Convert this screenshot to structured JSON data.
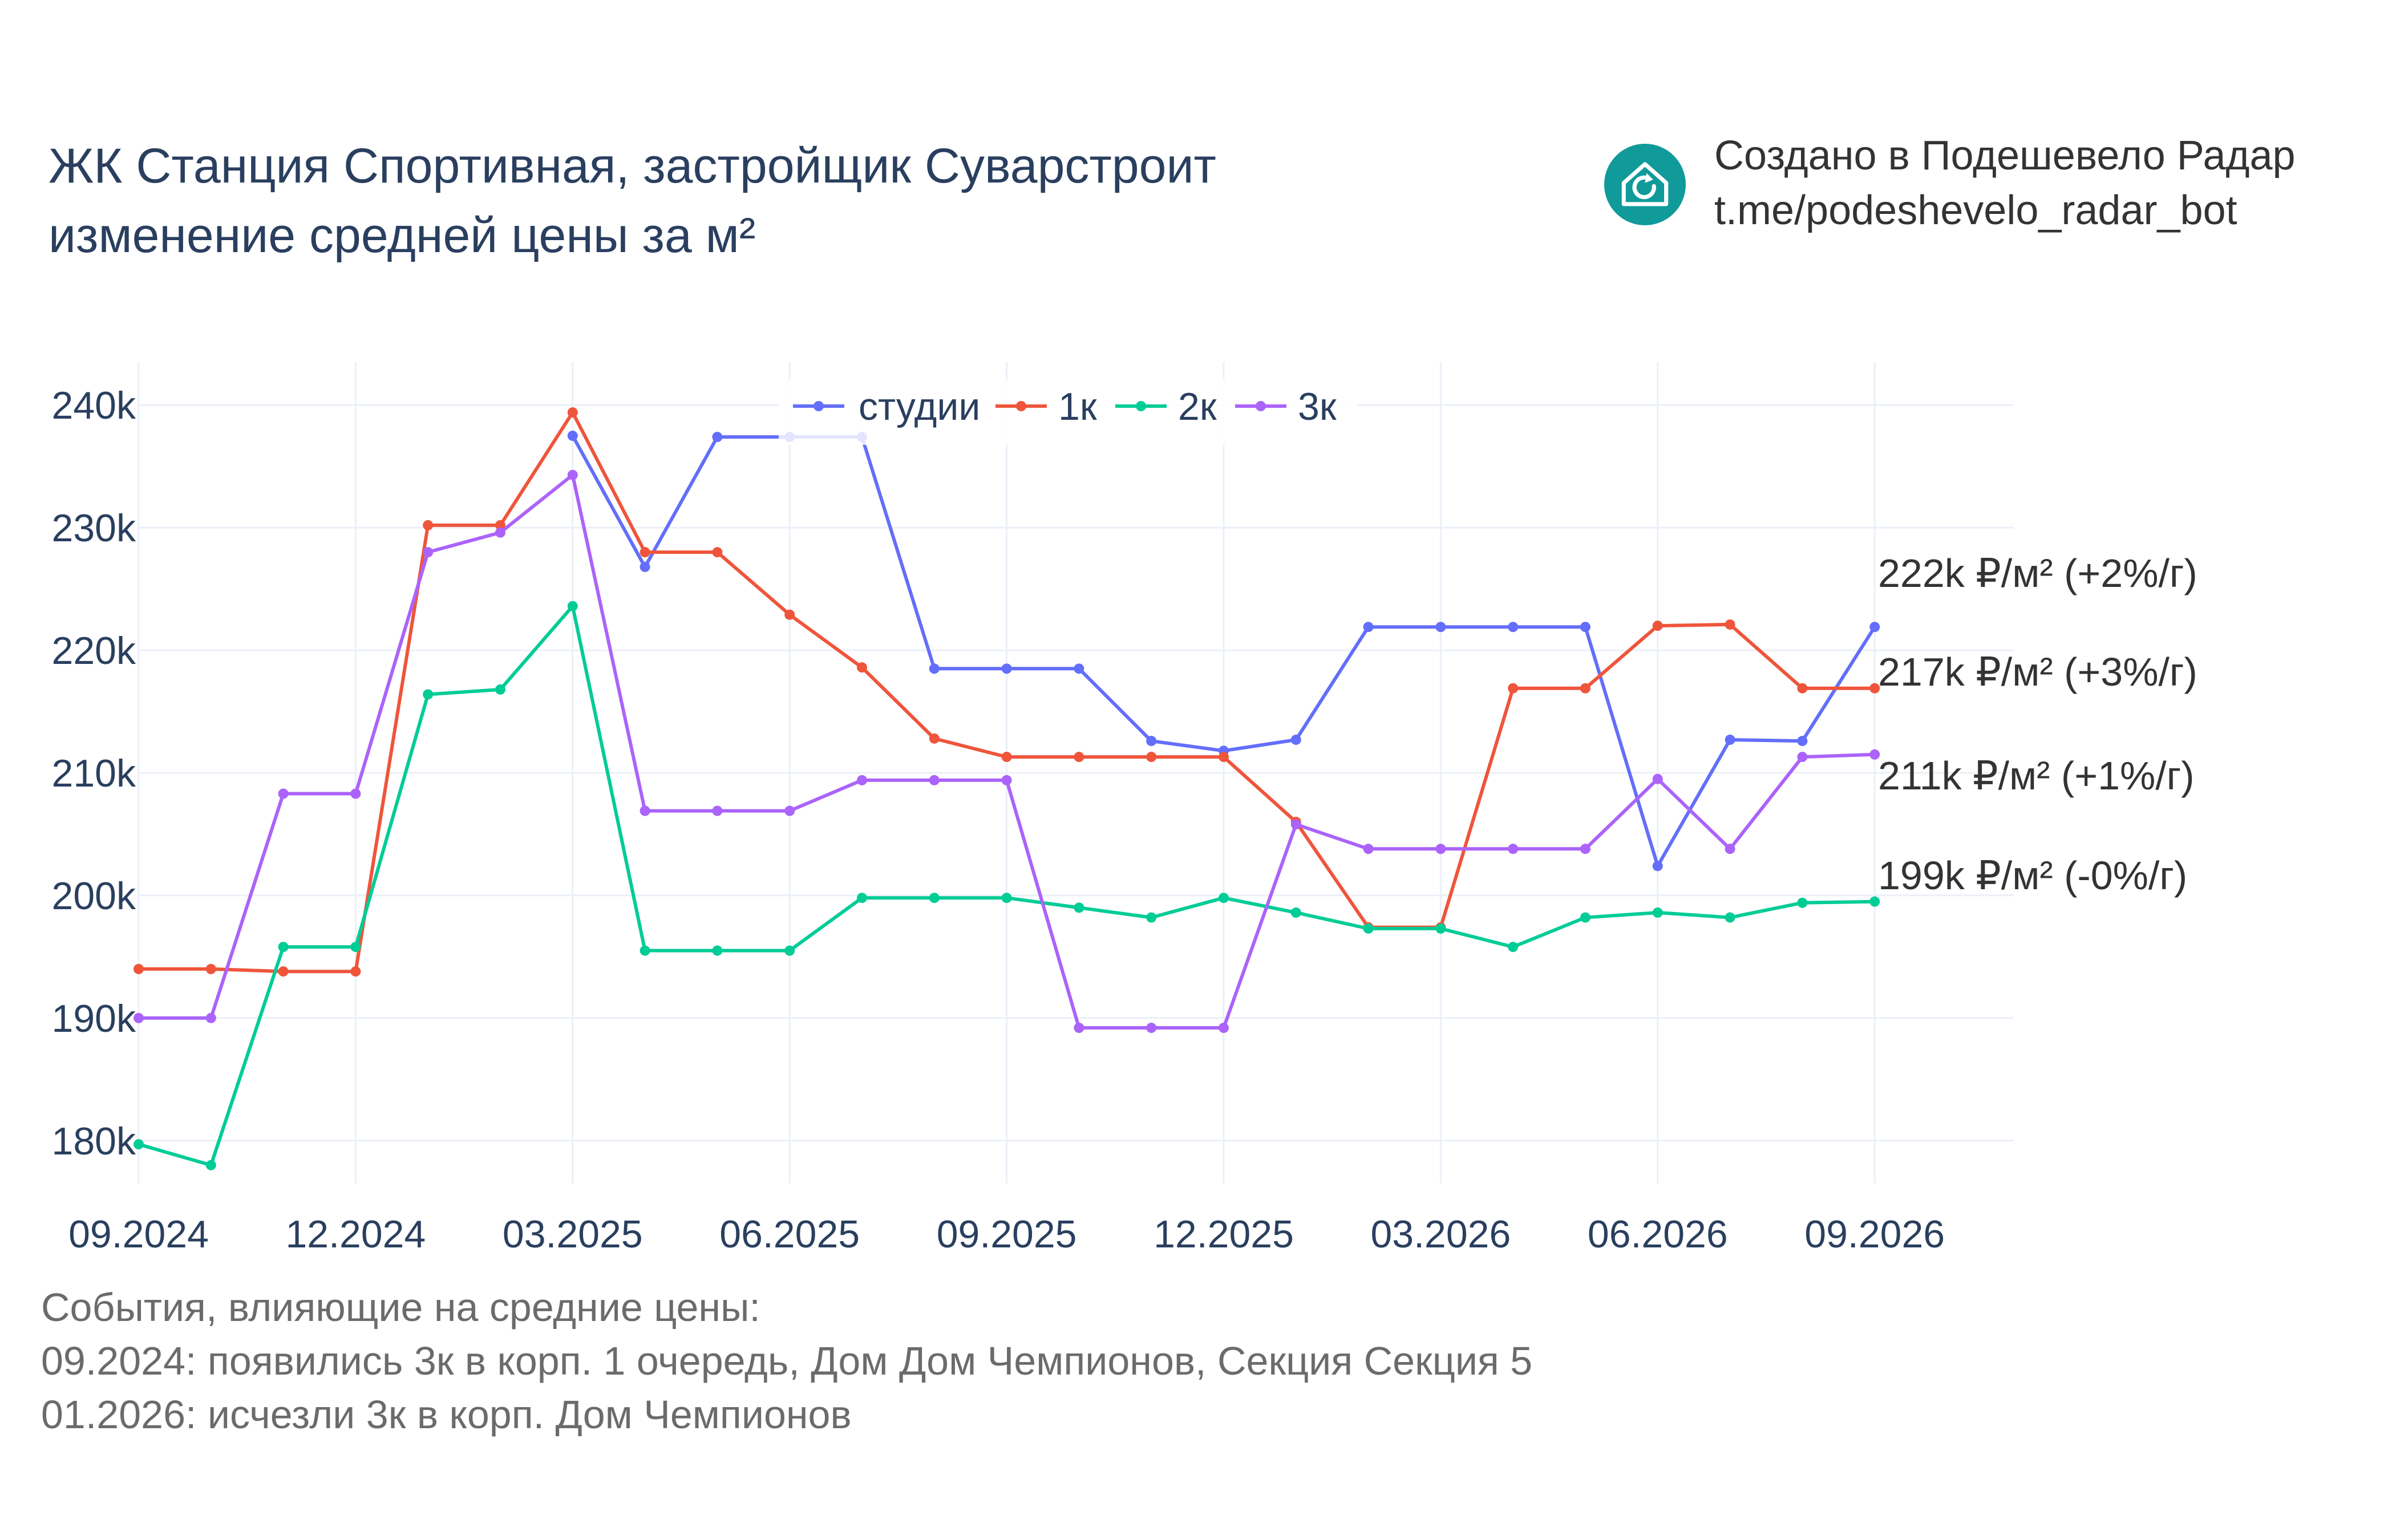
{
  "header": {
    "title_line1": "ЖК Станция Спортивная, застройщик Суварстроит",
    "title_line2": "изменение средней цены за м²"
  },
  "credit": {
    "line1": "Создано в Подешевело Радар",
    "line2": "t.me/podeshevelo_radar_bot",
    "logo_icon": "house-refresh-icon",
    "logo_color": "#109a9a"
  },
  "events": {
    "heading": "События, влияющие на средние цены:",
    "items": [
      "09.2024: появились 3к в корп. 1 очередь, Дом Дом Чемпионов, Секция Секция 5",
      "01.2026: исчезли 3к в корп. Дом Чемпионов"
    ]
  },
  "chart_data": {
    "type": "line",
    "x": [
      "09.2024",
      "10.2024",
      "11.2024",
      "12.2024",
      "01.2025",
      "02.2025",
      "03.2025",
      "04.2025",
      "05.2025",
      "06.2025",
      "07.2025",
      "08.2025",
      "09.2025",
      "10.2025",
      "11.2025",
      "12.2025",
      "01.2026",
      "02.2026",
      "03.2026",
      "04.2026",
      "05.2026",
      "06.2026",
      "07.2026",
      "08.2026",
      "09.2026"
    ],
    "x_tick_labels": [
      "09.2024",
      "12.2024",
      "03.2025",
      "06.2025",
      "09.2025",
      "12.2025",
      "03.2026",
      "06.2026",
      "09.2026"
    ],
    "y_tick_labels": [
      "180k",
      "190k",
      "200k",
      "210k",
      "220k",
      "230k",
      "240k"
    ],
    "y_ticks": [
      180000,
      190000,
      200000,
      210000,
      220000,
      230000,
      240000
    ],
    "ylim": [
      176500,
      243500
    ],
    "grid": true,
    "legend_position": "top-center",
    "series": [
      {
        "name": "студии",
        "color": "#636efa",
        "values": [
          null,
          null,
          null,
          null,
          null,
          null,
          237500,
          226800,
          237400,
          237400,
          237400,
          218500,
          218500,
          218500,
          212600,
          211800,
          212700,
          221900,
          221900,
          221900,
          221900,
          202400,
          212700,
          212600,
          221900
        ],
        "end_label": "222k ₽/м² (+2%/г)"
      },
      {
        "name": "1к",
        "color": "#ef553b",
        "values": [
          194000,
          194000,
          193800,
          193800,
          230200,
          230200,
          239400,
          228000,
          228000,
          222900,
          218600,
          212800,
          211300,
          211300,
          211300,
          211300,
          206000,
          197400,
          197400,
          216900,
          216900,
          222000,
          222100,
          216900,
          216900
        ],
        "end_label": "217k ₽/м² (+3%/г)"
      },
      {
        "name": "2к",
        "color": "#00cc96",
        "values": [
          179700,
          178000,
          195800,
          195800,
          216400,
          216800,
          223600,
          195500,
          195500,
          195500,
          199800,
          199800,
          199800,
          199000,
          198200,
          199800,
          198600,
          197300,
          197300,
          195800,
          198200,
          198600,
          198200,
          199400,
          199500
        ],
        "end_label": "199k ₽/м² (-0%/г)"
      },
      {
        "name": "3к",
        "color": "#ab63fa",
        "values": [
          190000,
          190000,
          208300,
          208300,
          228000,
          229600,
          234300,
          206900,
          206900,
          206900,
          209400,
          209400,
          209400,
          189200,
          189200,
          189200,
          205800,
          203800,
          203800,
          203800,
          203800,
          209500,
          203800,
          211300,
          211500
        ],
        "end_label": "211k ₽/м² (+1%/г)"
      }
    ]
  }
}
